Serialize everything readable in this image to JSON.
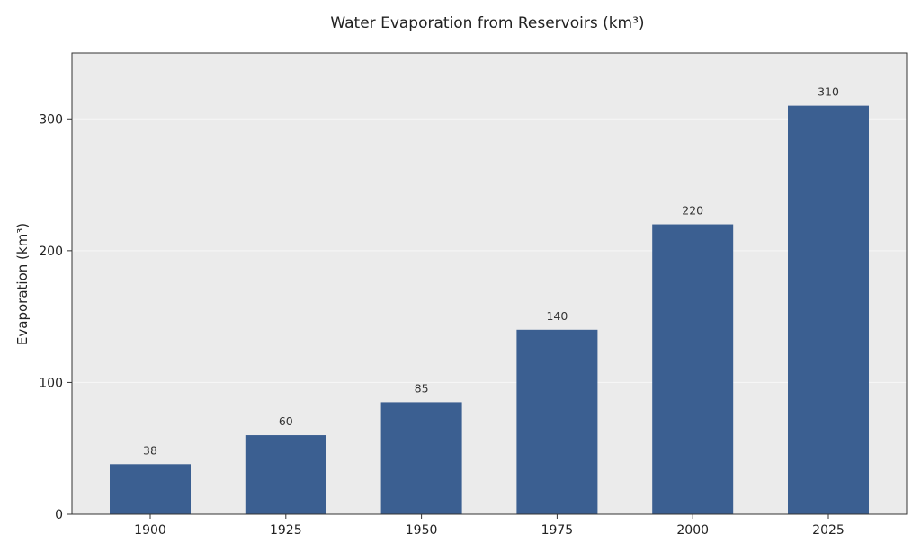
{
  "chart_data": {
    "type": "bar",
    "title": "Water Evaporation from Reservoirs (km³)",
    "xlabel": "",
    "ylabel": "Evaporation (km³)",
    "categories": [
      "1900",
      "1925",
      "1950",
      "1975",
      "2000",
      "2025"
    ],
    "values": [
      38,
      60,
      85,
      140,
      220,
      310
    ],
    "data_labels": [
      "38",
      "60",
      "85",
      "140",
      "220",
      "310"
    ],
    "ylim": [
      0,
      350
    ],
    "yticks": [
      0,
      100,
      200,
      300
    ],
    "ytick_labels": [
      "0",
      "100",
      "200",
      "300"
    ],
    "grid": true,
    "legend": "none"
  },
  "colors": {
    "bar": "#3b5f91",
    "plot_background": "#ebebeb",
    "gridline": "#f7f7f7",
    "axis": "#333333"
  }
}
